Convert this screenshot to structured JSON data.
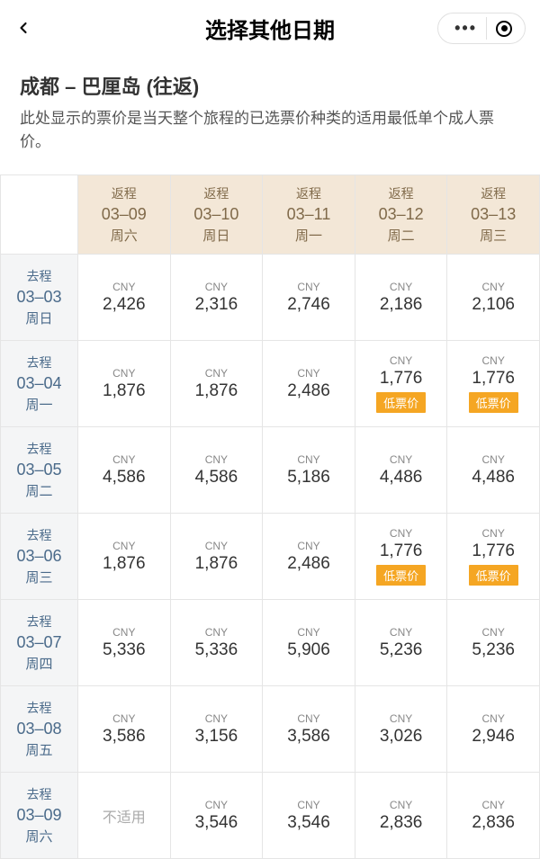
{
  "header": {
    "title": "选择其他日期"
  },
  "route": {
    "title": "成都 – 巴厘岛 (往返)",
    "description": "此处显示的票价是当天整个旅程的已选票价种类的适用最低单个成人票价。"
  },
  "colLabel": "返程",
  "rowLabel": "去程",
  "naText": "不适用",
  "lowBadge": "低票价",
  "currency": "CNY",
  "cols": [
    {
      "date": "03–09",
      "day": "周六"
    },
    {
      "date": "03–10",
      "day": "周日"
    },
    {
      "date": "03–11",
      "day": "周一"
    },
    {
      "date": "03–12",
      "day": "周二"
    },
    {
      "date": "03–13",
      "day": "周三"
    }
  ],
  "rows": [
    {
      "date": "03–03",
      "day": "周日",
      "cells": [
        {
          "price": "2,426"
        },
        {
          "price": "2,316"
        },
        {
          "price": "2,746"
        },
        {
          "price": "2,186"
        },
        {
          "price": "2,106"
        }
      ]
    },
    {
      "date": "03–04",
      "day": "周一",
      "cells": [
        {
          "price": "1,876"
        },
        {
          "price": "1,876"
        },
        {
          "price": "2,486"
        },
        {
          "price": "1,776",
          "low": true
        },
        {
          "price": "1,776",
          "low": true
        }
      ]
    },
    {
      "date": "03–05",
      "day": "周二",
      "cells": [
        {
          "price": "4,586"
        },
        {
          "price": "4,586"
        },
        {
          "price": "5,186"
        },
        {
          "price": "4,486"
        },
        {
          "price": "4,486"
        }
      ]
    },
    {
      "date": "03–06",
      "day": "周三",
      "cells": [
        {
          "price": "1,876"
        },
        {
          "price": "1,876"
        },
        {
          "price": "2,486"
        },
        {
          "price": "1,776",
          "low": true
        },
        {
          "price": "1,776",
          "low": true
        }
      ]
    },
    {
      "date": "03–07",
      "day": "周四",
      "cells": [
        {
          "price": "5,336"
        },
        {
          "price": "5,336"
        },
        {
          "price": "5,906"
        },
        {
          "price": "5,236"
        },
        {
          "price": "5,236"
        }
      ]
    },
    {
      "date": "03–08",
      "day": "周五",
      "cells": [
        {
          "price": "3,586"
        },
        {
          "price": "3,156"
        },
        {
          "price": "3,586"
        },
        {
          "price": "3,026"
        },
        {
          "price": "2,946"
        }
      ]
    },
    {
      "date": "03–09",
      "day": "周六",
      "cells": [
        {
          "na": true
        },
        {
          "price": "3,546"
        },
        {
          "price": "3,546"
        },
        {
          "price": "2,836"
        },
        {
          "price": "2,836"
        }
      ]
    }
  ]
}
